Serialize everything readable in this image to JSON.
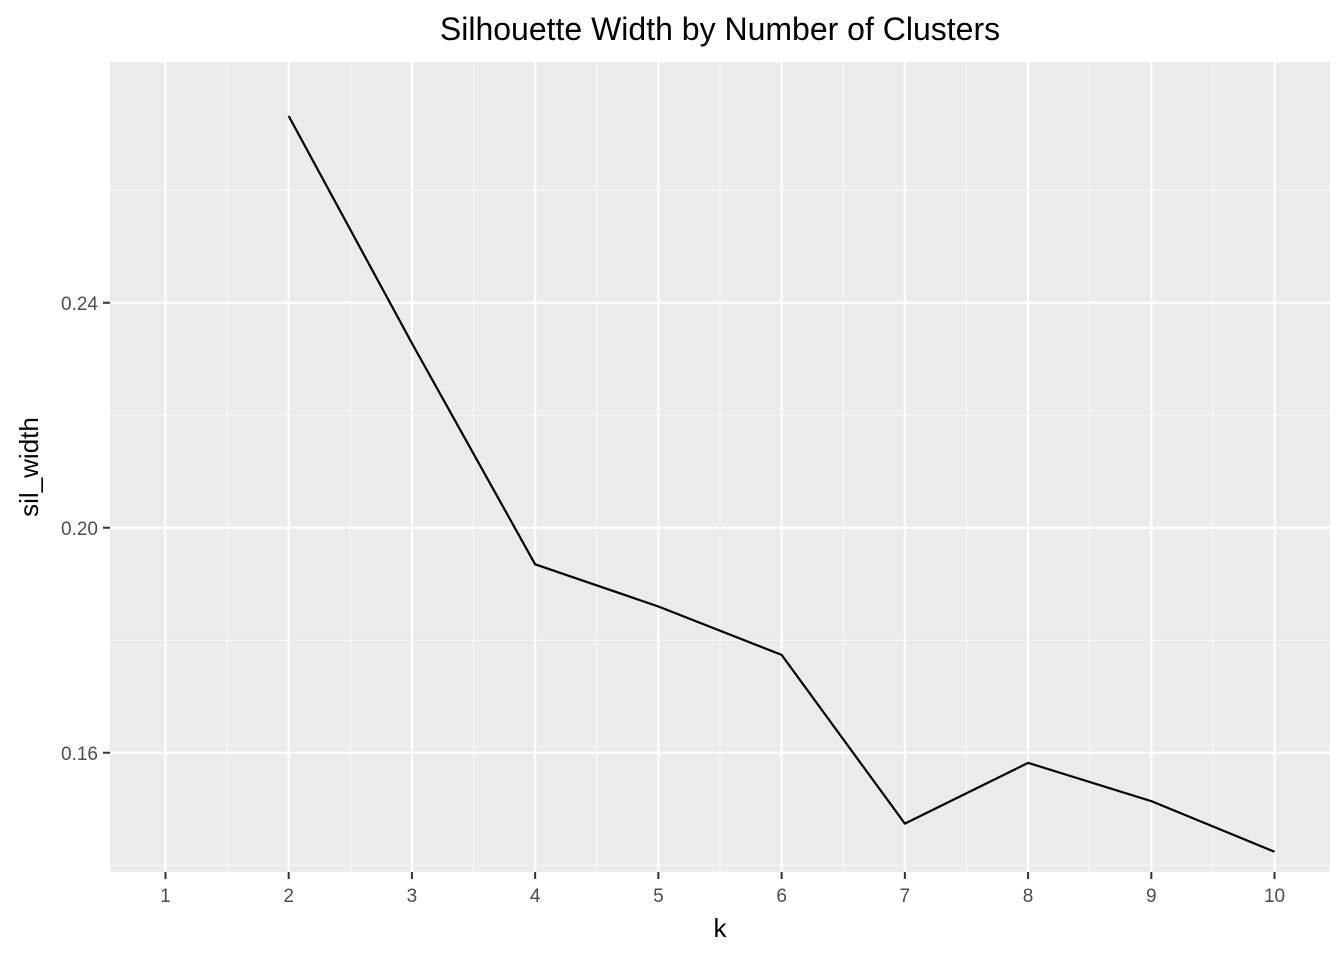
{
  "chart_data": {
    "type": "line",
    "title": "Silhouette Width by Number of Clusters",
    "xlabel": "k",
    "ylabel": "sil_width",
    "x": [
      1,
      2,
      3,
      4,
      5,
      6,
      7,
      8,
      9,
      10
    ],
    "x_tick_labels": [
      "1",
      "2",
      "3",
      "4",
      "5",
      "6",
      "7",
      "8",
      "9",
      "10"
    ],
    "y_ticks": [
      0.16,
      0.2,
      0.24
    ],
    "y_tick_labels": [
      "0.16",
      "0.20",
      "0.24"
    ],
    "xlim": [
      0.55,
      10.45
    ],
    "ylim": [
      0.1388,
      0.2828
    ],
    "grid": true,
    "legend": "none",
    "series": [
      {
        "x": [
          2,
          3,
          4,
          5,
          6,
          7,
          8,
          9,
          10
        ],
        "values": [
          0.2732,
          0.2328,
          0.1935,
          0.186,
          0.1774,
          0.1474,
          0.1582,
          0.1514,
          0.1424
        ]
      }
    ],
    "colors": {
      "panel_background": "#EBEBEB",
      "grid_major": "#FFFFFF",
      "grid_minor": "#F7F7F7",
      "line": "#000000",
      "tick_label": "#4D4D4D",
      "tick_mark": "#333333"
    }
  }
}
